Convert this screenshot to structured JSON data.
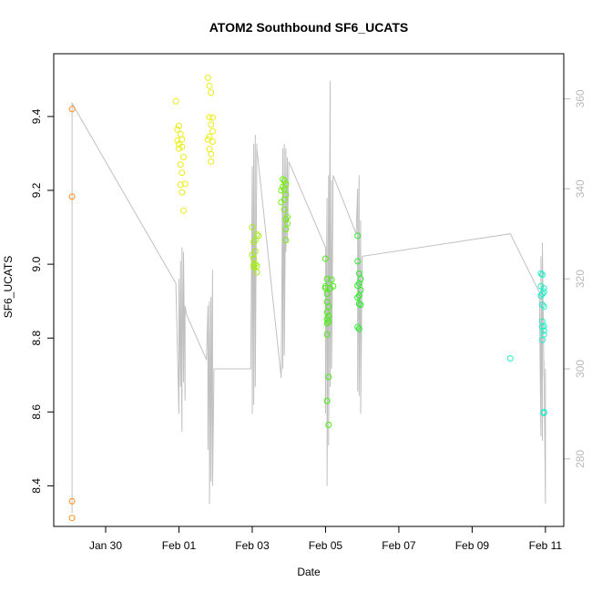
{
  "chart_data": {
    "type": "scatter",
    "title": "ATOM2 Southbound SF6_UCATS",
    "xlabel": "Date",
    "ylabel": "SF6_UCATS",
    "xlim": [
      "2017-01-28T14:00",
      "2017-02-11T12:00"
    ],
    "ylim": [
      8.29,
      9.57
    ],
    "y2lim": [
      265,
      370
    ],
    "x_ticks": [
      {
        "t": "2017-01-30",
        "label": "Jan 30"
      },
      {
        "t": "2017-02-01",
        "label": "Feb 01"
      },
      {
        "t": "2017-02-03",
        "label": "Feb 03"
      },
      {
        "t": "2017-02-05",
        "label": "Feb 05"
      },
      {
        "t": "2017-02-07",
        "label": "Feb 07"
      },
      {
        "t": "2017-02-09",
        "label": "Feb 09"
      },
      {
        "t": "2017-02-11",
        "label": "Feb 11"
      }
    ],
    "y_ticks": [
      8.4,
      8.6,
      8.8,
      9.0,
      9.2,
      9.4
    ],
    "y2_ticks": [
      280,
      300,
      320,
      340,
      360
    ],
    "grid": false,
    "series": [
      {
        "color": "#ff8c19",
        "points": [
          [
            "2017-01-29T02:00",
            9.42
          ],
          [
            "2017-01-29T02:00",
            9.183
          ],
          [
            "2017-01-29T02:00",
            8.358
          ],
          [
            "2017-01-29T02:00",
            8.313
          ]
        ]
      },
      {
        "color": "#eded11",
        "points": [
          [
            "2017-01-31T22:00",
            9.441
          ],
          [
            "2017-02-01T00:00",
            9.375
          ],
          [
            "2017-01-31T23:00",
            9.365
          ],
          [
            "2017-02-01T01:00",
            9.352
          ],
          [
            "2017-02-01T02:00",
            9.338
          ],
          [
            "2017-01-31T23:00",
            9.335
          ],
          [
            "2017-02-01T00:00",
            9.325
          ],
          [
            "2017-02-01T02:00",
            9.318
          ],
          [
            "2017-02-01T00:00",
            9.313
          ],
          [
            "2017-02-01T03:00",
            9.29
          ],
          [
            "2017-02-01T01:00",
            9.27
          ],
          [
            "2017-02-01T02:00",
            9.248
          ],
          [
            "2017-02-01T04:00",
            9.218
          ],
          [
            "2017-02-01T01:00",
            9.215
          ],
          [
            "2017-02-01T02:00",
            9.195
          ],
          [
            "2017-02-01T03:00",
            9.145
          ],
          [
            "2017-02-01T19:00",
            9.505
          ],
          [
            "2017-02-01T20:00",
            9.483
          ],
          [
            "2017-02-01T21:00",
            9.465
          ],
          [
            "2017-02-01T20:00",
            9.398
          ],
          [
            "2017-02-01T22:00",
            9.397
          ],
          [
            "2017-02-01T21:00",
            9.378
          ],
          [
            "2017-02-01T22:00",
            9.36
          ],
          [
            "2017-02-01T20:00",
            9.345
          ],
          [
            "2017-02-01T19:00",
            9.338
          ],
          [
            "2017-02-01T22:00",
            9.332
          ],
          [
            "2017-02-01T20:00",
            9.312
          ],
          [
            "2017-02-01T21:00",
            9.298
          ],
          [
            "2017-02-01T21:00",
            9.278
          ]
        ]
      },
      {
        "color": "#a5ee11",
        "points": [
          [
            "2017-02-03T00:00",
            9.1
          ],
          [
            "2017-02-03T03:00",
            9.081
          ],
          [
            "2017-02-03T04:00",
            9.077
          ],
          [
            "2017-02-03T02:00",
            9.065
          ],
          [
            "2017-02-03T01:00",
            9.06
          ],
          [
            "2017-02-03T02:00",
            9.035
          ],
          [
            "2017-02-03T00:00",
            9.025
          ],
          [
            "2017-02-03T01:00",
            9.015
          ],
          [
            "2017-02-03T02:00",
            9.0
          ],
          [
            "2017-02-03T01:00",
            8.997
          ],
          [
            "2017-02-03T03:00",
            8.995
          ],
          [
            "2017-02-03T01:00",
            8.992
          ],
          [
            "2017-02-03T03:00",
            8.978
          ]
        ]
      },
      {
        "color": "#77ee11",
        "points": [
          [
            "2017-02-03T20:00",
            9.23
          ],
          [
            "2017-02-03T21:00",
            9.226
          ],
          [
            "2017-02-03T22:00",
            9.217
          ],
          [
            "2017-02-03T20:00",
            9.21
          ],
          [
            "2017-02-03T21:00",
            9.203
          ],
          [
            "2017-02-03T19:00",
            9.2
          ],
          [
            "2017-02-03T22:00",
            9.188
          ],
          [
            "2017-02-03T21:00",
            9.175
          ],
          [
            "2017-02-03T19:00",
            9.168
          ],
          [
            "2017-02-03T21:00",
            9.148
          ],
          [
            "2017-02-03T23:00",
            9.128
          ],
          [
            "2017-02-03T22:00",
            9.122
          ],
          [
            "2017-02-03T23:00",
            9.11
          ],
          [
            "2017-02-03T22:00",
            9.095
          ],
          [
            "2017-02-03T22:00",
            9.065
          ]
        ]
      },
      {
        "color": "#4aee11",
        "points": [
          [
            "2017-02-05T00:00",
            9.015
          ],
          [
            "2017-02-05T04:00",
            8.958
          ],
          [
            "2017-02-05T01:00",
            8.96
          ],
          [
            "2017-02-05T00:00",
            8.94
          ],
          [
            "2017-02-05T00:00",
            8.935
          ],
          [
            "2017-02-05T01:00",
            8.92
          ],
          [
            "2017-02-05T01:00",
            8.898
          ],
          [
            "2017-02-05T02:00",
            8.885
          ],
          [
            "2017-02-05T01:00",
            8.87
          ],
          [
            "2017-02-05T02:00",
            8.86
          ],
          [
            "2017-02-05T01:00",
            8.852
          ],
          [
            "2017-02-05T02:00",
            8.845
          ],
          [
            "2017-02-05T01:00",
            8.84
          ],
          [
            "2017-02-05T01:00",
            8.81
          ],
          [
            "2017-02-05T02:00",
            8.695
          ],
          [
            "2017-02-05T01:00",
            8.63
          ],
          [
            "2017-02-05T02:00",
            8.565
          ],
          [
            "2017-02-05T05:00",
            8.94
          ],
          [
            "2017-02-05T03:00",
            8.935
          ]
        ]
      },
      {
        "color": "#2aee2a",
        "points": [
          [
            "2017-02-05T21:00",
            9.077
          ],
          [
            "2017-02-05T21:00",
            9.008
          ],
          [
            "2017-02-05T22:00",
            8.975
          ],
          [
            "2017-02-05T23:00",
            8.96
          ],
          [
            "2017-02-05T22:00",
            8.948
          ],
          [
            "2017-02-05T23:00",
            8.93
          ],
          [
            "2017-02-05T21:00",
            8.942
          ],
          [
            "2017-02-05T22:00",
            8.915
          ],
          [
            "2017-02-05T21:00",
            8.91
          ],
          [
            "2017-02-05T22:00",
            8.893
          ],
          [
            "2017-02-05T23:00",
            8.89
          ],
          [
            "2017-02-05T21:00",
            8.83
          ],
          [
            "2017-02-05T22:00",
            8.825
          ]
        ]
      },
      {
        "color": "#21eec5",
        "points": [
          [
            "2017-02-10T01:00",
            8.745
          ],
          [
            "2017-02-10T21:00",
            8.975
          ],
          [
            "2017-02-10T22:00",
            8.972
          ],
          [
            "2017-02-10T21:00",
            8.94
          ],
          [
            "2017-02-10T23:00",
            8.935
          ],
          [
            "2017-02-10T22:00",
            8.92
          ],
          [
            "2017-02-10T23:00",
            8.925
          ],
          [
            "2017-02-10T21:00",
            8.915
          ],
          [
            "2017-02-10T22:00",
            8.89
          ],
          [
            "2017-02-10T23:00",
            8.885
          ],
          [
            "2017-02-10T22:00",
            8.845
          ],
          [
            "2017-02-10T23:00",
            8.832
          ],
          [
            "2017-02-10T22:00",
            8.83
          ],
          [
            "2017-02-10T23:00",
            8.82
          ],
          [
            "2017-02-10T23:00",
            8.81
          ],
          [
            "2017-02-10T22:00",
            8.795
          ],
          [
            "2017-02-10T23:00",
            8.6
          ],
          [
            "2017-02-10T23:00",
            8.597
          ]
        ]
      }
    ],
    "line_series": {
      "axis": "right",
      "color": "#c0c0c0",
      "points": [
        [
          "2017-01-29T02:00",
          268
        ],
        [
          "2017-01-29T02:00",
          359
        ],
        [
          "2017-01-31T22:00",
          319
        ],
        [
          "2017-02-01T00:00",
          290
        ],
        [
          "2017-02-01T00:00",
          320
        ],
        [
          "2017-02-01T01:00",
          296
        ],
        [
          "2017-02-01T01:00",
          324
        ],
        [
          "2017-02-01T02:00",
          286
        ],
        [
          "2017-02-01T02:00",
          327
        ],
        [
          "2017-02-01T03:00",
          297
        ],
        [
          "2017-02-01T03:00",
          326
        ],
        [
          "2017-02-01T04:00",
          293
        ],
        [
          "2017-02-01T04:00",
          314
        ],
        [
          "2017-02-01T05:00",
          312
        ],
        [
          "2017-02-01T18:00",
          302
        ],
        [
          "2017-02-01T19:00",
          314
        ],
        [
          "2017-02-01T19:00",
          282
        ],
        [
          "2017-02-01T20:00",
          315
        ],
        [
          "2017-02-01T20:00",
          270
        ],
        [
          "2017-02-01T21:00",
          316
        ],
        [
          "2017-02-01T21:00",
          275
        ],
        [
          "2017-02-01T22:00",
          322
        ],
        [
          "2017-02-01T22:00",
          274
        ],
        [
          "2017-02-01T23:00",
          300
        ],
        [
          "2017-02-02T23:00",
          300
        ],
        [
          "2017-02-03T00:00",
          345
        ],
        [
          "2017-02-03T00:00",
          290
        ],
        [
          "2017-02-03T01:00",
          350
        ],
        [
          "2017-02-03T01:00",
          292
        ],
        [
          "2017-02-03T02:00",
          352
        ],
        [
          "2017-02-03T02:00",
          296
        ],
        [
          "2017-02-03T03:00",
          350
        ],
        [
          "2017-02-03T03:00",
          349
        ],
        [
          "2017-02-03T19:00",
          298
        ],
        [
          "2017-02-03T20:00",
          349
        ],
        [
          "2017-02-03T20:00",
          300
        ],
        [
          "2017-02-03T21:00",
          350
        ],
        [
          "2017-02-03T21:00",
          303
        ],
        [
          "2017-02-03T22:00",
          349
        ],
        [
          "2017-02-03T22:00",
          326
        ],
        [
          "2017-02-03T23:00",
          347
        ],
        [
          "2017-02-03T23:00",
          328
        ],
        [
          "2017-02-04T00:00",
          346
        ],
        [
          "2017-02-05T00:00",
          327
        ],
        [
          "2017-02-05T00:00",
          290
        ],
        [
          "2017-02-05T01:00",
          338
        ],
        [
          "2017-02-05T01:00",
          274
        ],
        [
          "2017-02-05T02:00",
          343
        ],
        [
          "2017-02-05T02:00",
          283
        ],
        [
          "2017-02-05T03:00",
          364
        ],
        [
          "2017-02-05T03:00",
          296
        ],
        [
          "2017-02-05T04:00",
          342
        ],
        [
          "2017-02-05T04:00",
          300
        ],
        [
          "2017-02-05T05:00",
          343
        ],
        [
          "2017-02-05T20:00",
          330
        ],
        [
          "2017-02-05T21:00",
          340
        ],
        [
          "2017-02-05T21:00",
          295
        ],
        [
          "2017-02-05T22:00",
          343
        ],
        [
          "2017-02-05T22:00",
          294
        ],
        [
          "2017-02-05T23:00",
          333
        ],
        [
          "2017-02-05T23:00",
          290
        ],
        [
          "2017-02-06T00:00",
          325
        ],
        [
          "2017-02-10T01:00",
          330
        ],
        [
          "2017-02-10T20:00",
          317
        ],
        [
          "2017-02-10T21:00",
          285
        ],
        [
          "2017-02-10T21:00",
          325
        ],
        [
          "2017-02-10T22:00",
          284
        ],
        [
          "2017-02-10T22:00",
          328
        ],
        [
          "2017-02-10T23:00",
          298
        ],
        [
          "2017-02-10T23:00",
          302
        ],
        [
          "2017-02-11T00:00",
          270
        ],
        [
          "2017-02-11T00:00",
          300
        ]
      ]
    }
  }
}
